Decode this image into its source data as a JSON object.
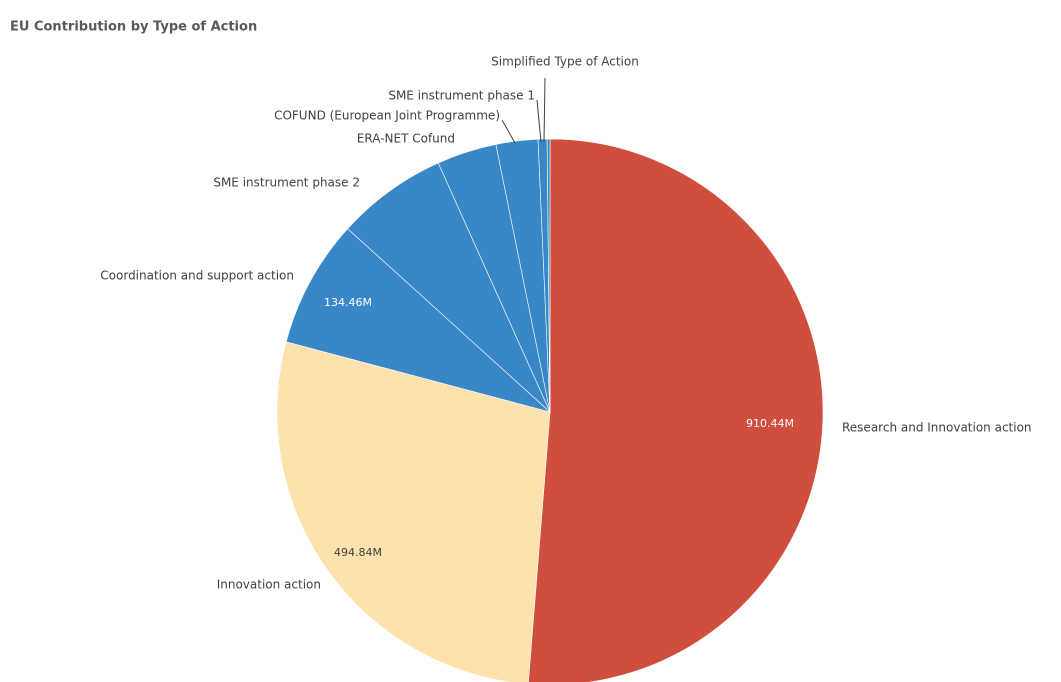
{
  "chart_data": {
    "type": "pie",
    "title": "EU Contribution by Type of Action",
    "categories": [
      "Research and Innovation action",
      "Innovation action",
      "Coordination and support action",
      "SME instrument phase 2",
      "ERA-NET Cofund",
      "COFUND (European Joint Programme)",
      "SME instrument phase 1",
      "Simplified Type of Action"
    ],
    "values": [
      910.44,
      494.84,
      134.46,
      116.7,
      62.8,
      44,
      9.4,
      3
    ],
    "value_labels": [
      "910.44M",
      "494.84M",
      "134.46M",
      null,
      null,
      null,
      null,
      null
    ],
    "colors": [
      "#d04e3d",
      "#fde2ad",
      "#3a87c8",
      "#3a87c8",
      "#3a87c8",
      "#3a87c8",
      "#3a87c8",
      "#3a87c8"
    ]
  }
}
